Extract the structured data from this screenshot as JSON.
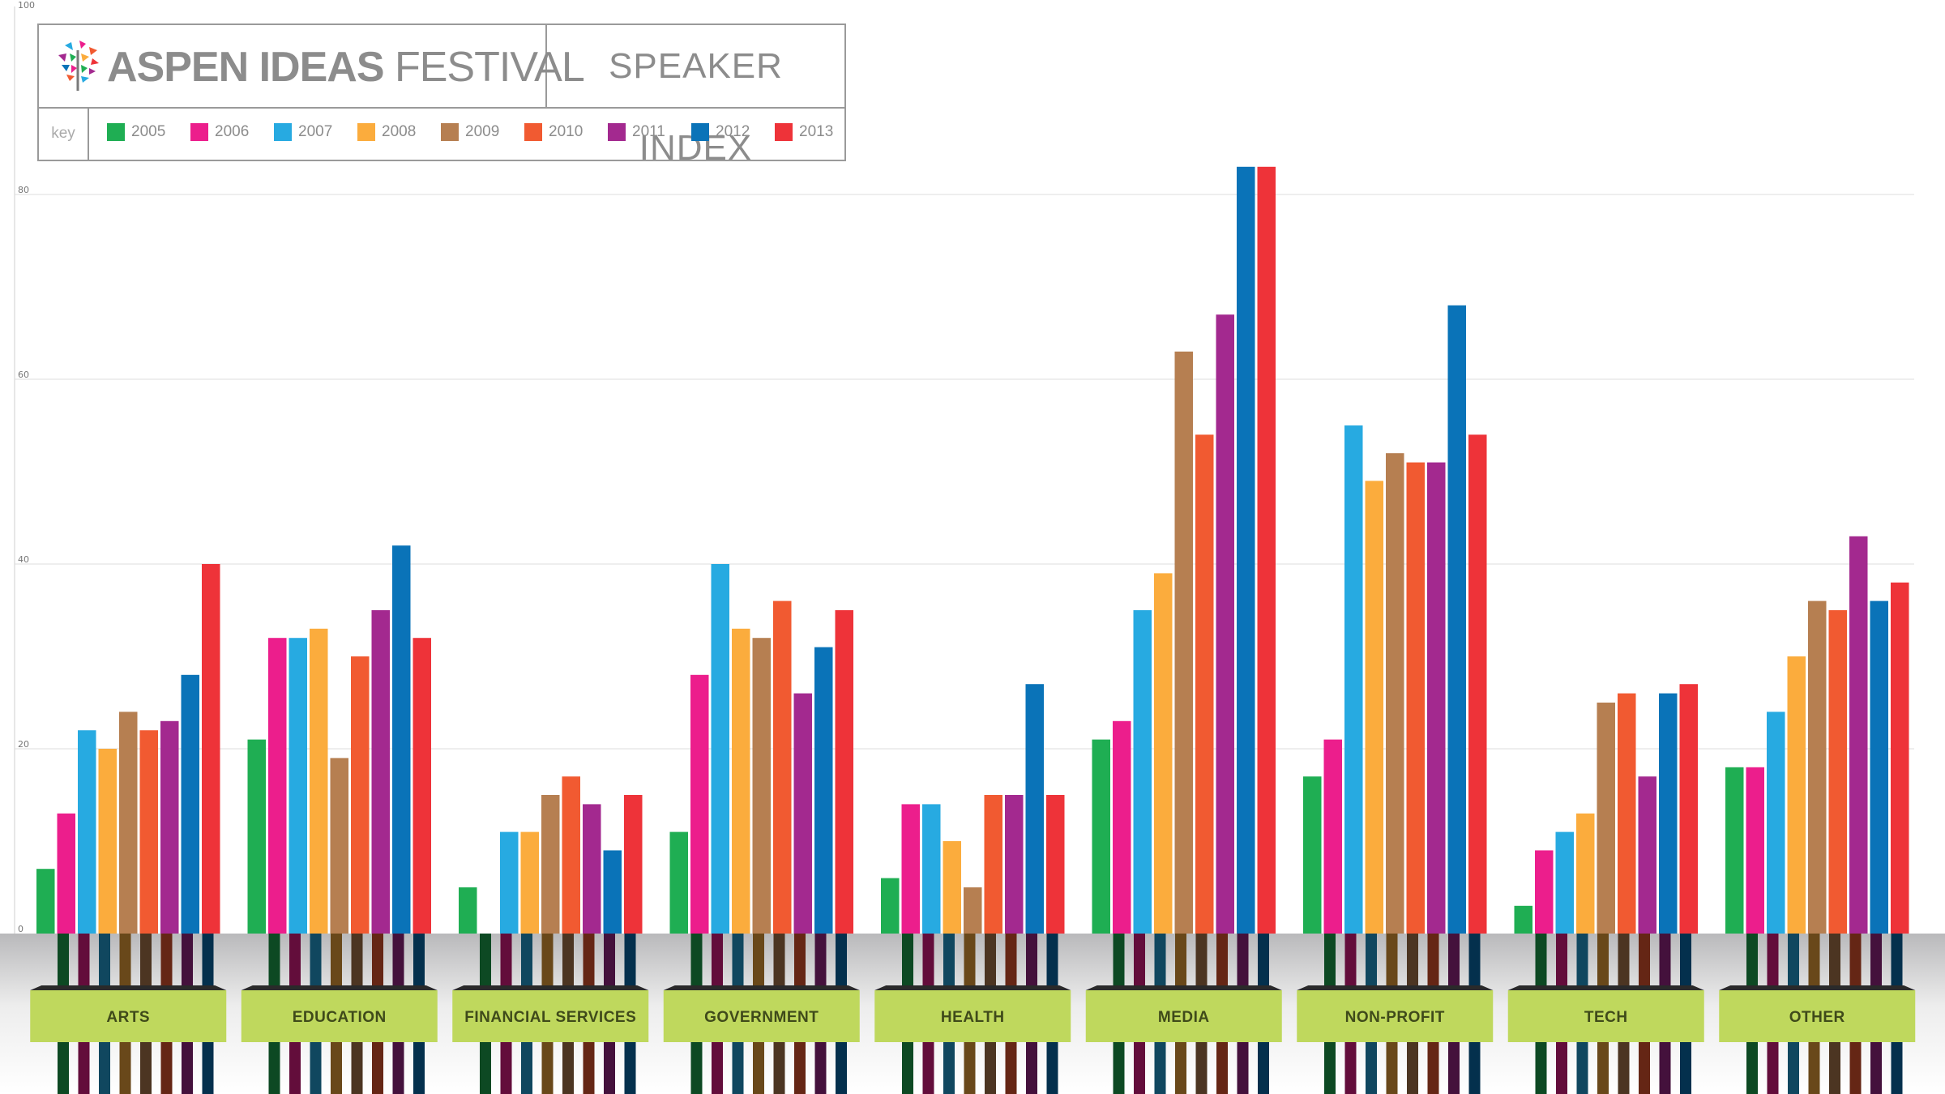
{
  "header": {
    "brand_bold": "ASPEN IDEAS",
    "brand_light": "FESTIVAL",
    "subtitle": "SPEAKER INDEX",
    "key_label": "key"
  },
  "chart_data": {
    "type": "bar",
    "title": "SPEAKER INDEX",
    "xlabel": "",
    "ylabel": "",
    "ylim": [
      0,
      100
    ],
    "yticks": [
      0,
      20,
      40,
      60,
      80,
      100
    ],
    "grid": true,
    "legend": "top-left",
    "categories": [
      "ARTS",
      "EDUCATION",
      "FINANCIAL SERVICES",
      "GOVERNMENT",
      "HEALTH",
      "MEDIA",
      "NON-PROFIT",
      "TECH",
      "OTHER"
    ],
    "series": [
      {
        "name": "2005",
        "color": "#1fae53",
        "values": [
          7,
          21,
          5,
          11,
          6,
          21,
          17,
          3,
          18
        ]
      },
      {
        "name": "2006",
        "color": "#ec1e8c",
        "values": [
          13,
          32,
          0,
          28,
          14,
          23,
          21,
          9,
          18
        ]
      },
      {
        "name": "2007",
        "color": "#27aae1",
        "values": [
          22,
          32,
          11,
          40,
          14,
          35,
          55,
          11,
          24
        ]
      },
      {
        "name": "2008",
        "color": "#fbac3d",
        "values": [
          20,
          33,
          11,
          33,
          10,
          39,
          49,
          13,
          30
        ]
      },
      {
        "name": "2009",
        "color": "#b67f51",
        "values": [
          24,
          19,
          15,
          32,
          5,
          63,
          52,
          25,
          36
        ]
      },
      {
        "name": "2010",
        "color": "#f15a31",
        "values": [
          22,
          30,
          17,
          36,
          15,
          54,
          51,
          26,
          35
        ]
      },
      {
        "name": "2011",
        "color": "#a3298f",
        "values": [
          23,
          35,
          14,
          26,
          15,
          67,
          51,
          17,
          43
        ]
      },
      {
        "name": "2012",
        "color": "#0a73b8",
        "values": [
          28,
          42,
          9,
          31,
          27,
          83,
          68,
          26,
          36
        ]
      },
      {
        "name": "2013",
        "color": "#ee3339",
        "values": [
          40,
          32,
          15,
          35,
          15,
          83,
          54,
          27,
          38
        ]
      }
    ]
  },
  "colors": {
    "label_box": "#bfd85d",
    "label_text": "#3f4a1a",
    "grid": "#dcdcdc",
    "border": "#9a9a9a"
  }
}
